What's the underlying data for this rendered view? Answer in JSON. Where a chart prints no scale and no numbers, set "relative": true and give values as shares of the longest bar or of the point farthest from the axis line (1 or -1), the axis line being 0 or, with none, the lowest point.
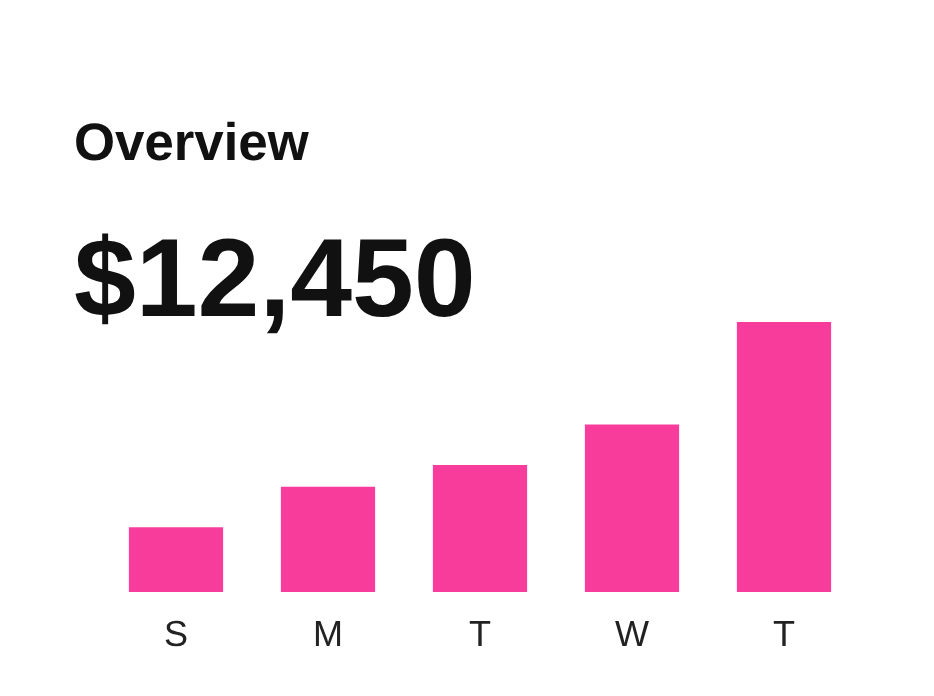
{
  "chart_data": {
    "type": "bar",
    "title": "Overview",
    "subtitle": "$12,450",
    "categories": [
      "S",
      "M",
      "T",
      "W",
      "T"
    ],
    "values": [
      0.24,
      0.39,
      0.47,
      0.62,
      1
    ],
    "color": "#f83c9c",
    "relative": true,
    "grid": false
  }
}
